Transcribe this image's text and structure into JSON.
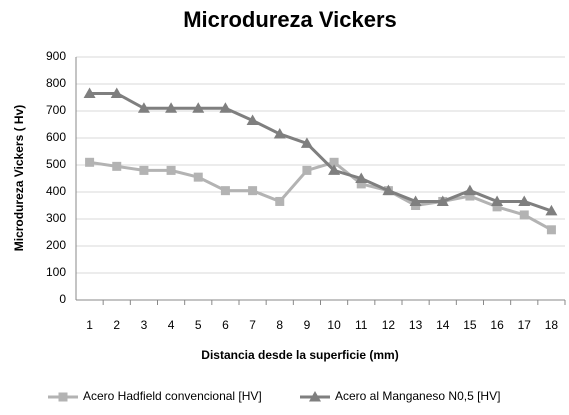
{
  "chart_data": {
    "type": "line",
    "title": "Microdureza Vickers",
    "xlabel": "Distancia desde la superficie (mm)",
    "ylabel": "Microdureza Vickers ( Hv)",
    "categories": [
      1,
      2,
      3,
      4,
      5,
      6,
      7,
      8,
      9,
      10,
      11,
      12,
      13,
      14,
      15,
      16,
      17,
      18
    ],
    "series": [
      {
        "name": "Acero Hadfield convencional [HV]",
        "color": "#b3b3b3",
        "marker": "square",
        "values": [
          510,
          495,
          480,
          480,
          455,
          405,
          405,
          365,
          480,
          510,
          430,
          405,
          350,
          365,
          385,
          345,
          315,
          260
        ]
      },
      {
        "name": "Acero al Manganeso N0,5 [HV]",
        "color": "#7f7f7f",
        "marker": "triangle",
        "values": [
          765,
          765,
          710,
          710,
          710,
          710,
          665,
          615,
          580,
          480,
          450,
          405,
          365,
          365,
          405,
          365,
          365,
          330
        ]
      }
    ],
    "ylim": [
      0,
      900
    ],
    "yticks": [
      0,
      100,
      200,
      300,
      400,
      500,
      600,
      700,
      800,
      900
    ],
    "grid": true
  }
}
